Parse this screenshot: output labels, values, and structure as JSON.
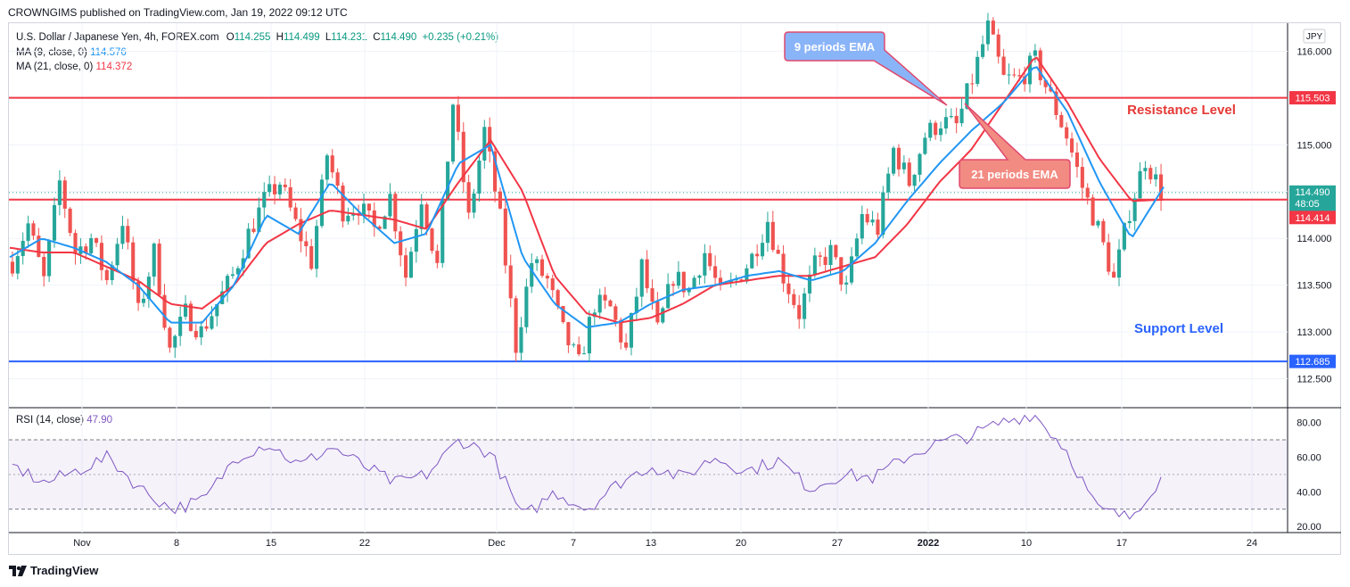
{
  "header": {
    "published_by": "CROWNGIMS published on TradingView.com, Jan 19, 2022 09:12 UTC"
  },
  "legend": {
    "symbol": "U.S. Dollar / Japanese Yen, 4h, FOREX.com",
    "open_label": "O",
    "open": "114.255",
    "high_label": "H",
    "high": "114.499",
    "low_label": "L",
    "low": "114.231",
    "close_label": "C",
    "close": "114.490",
    "change": "+0.235 (+0.21%)",
    "ma9_label": "MA (9, close, 0)",
    "ma9_value": "114.576",
    "ma21_label": "MA (21, close, 0)",
    "ma21_value": "114.372",
    "rsi_label": "RSI (14, close)",
    "rsi_value": "47.90"
  },
  "currency_badge": "JPY",
  "annotations": {
    "ema9": "9 periods EMA",
    "ema21": "21 periods EMA",
    "resistance": "Resistance Level",
    "support": "Support Level"
  },
  "price_tags": {
    "resistance": "115.503",
    "last_price": "114.490",
    "countdown": "48:05",
    "ma_level": "114.414",
    "support": "112.685"
  },
  "footer": {
    "brand": "TradingView"
  },
  "colors": {
    "up": "#26a69a",
    "down": "#ef5350",
    "ma9": "#2196f3",
    "ma21": "#f23645",
    "resistance": "#f23645",
    "support": "#2962ff",
    "rsi": "#7e57c2"
  },
  "chart_data": {
    "type": "candlestick",
    "title": "U.S. Dollar / Japanese Yen, 4h, FOREX.com",
    "price_axis": {
      "ylim": [
        112.2,
        116.3
      ],
      "ticks": [
        "116.000",
        "115.500",
        "115.000",
        "114.500",
        "114.000",
        "113.500",
        "113.000",
        "112.500"
      ]
    },
    "time_axis": {
      "ticks": [
        "Nov",
        "8",
        "15",
        "22",
        "Dec",
        "7",
        "13",
        "20",
        "27",
        "2022",
        "10",
        "17",
        "24"
      ]
    },
    "horizontal_levels": [
      {
        "name": "Resistance Level",
        "value": 115.503
      },
      {
        "name": "",
        "value": 114.414
      },
      {
        "name": "Support Level",
        "value": 112.685
      }
    ],
    "price_path": [
      [
        113.75,
        114.15
      ],
      [
        113.55,
        114.6
      ],
      [
        113.85,
        114.0
      ],
      [
        113.55,
        114.2
      ],
      [
        113.2,
        113.85
      ],
      [
        112.8,
        113.2
      ],
      [
        113.0,
        113.3
      ],
      [
        113.6,
        114.05
      ],
      [
        114.4,
        114.6
      ],
      [
        114.15,
        113.75
      ],
      [
        114.9,
        114.3
      ],
      [
        114.35,
        114.1
      ],
      [
        114.45,
        113.6
      ],
      [
        114.45,
        113.7
      ],
      [
        115.45,
        114.2
      ],
      [
        115.15,
        114.2
      ],
      [
        112.85,
        113.75
      ],
      [
        113.55,
        113.0
      ],
      [
        112.65,
        113.3
      ],
      [
        113.25,
        112.8
      ],
      [
        113.7,
        113.0
      ],
      [
        113.6,
        113.45
      ],
      [
        113.85,
        113.4
      ],
      [
        113.55,
        113.8
      ],
      [
        114.2,
        113.6
      ],
      [
        113.2,
        113.7
      ],
      [
        113.85,
        113.45
      ],
      [
        114.25,
        114.1
      ],
      [
        114.95,
        114.6
      ],
      [
        115.1,
        115.25
      ],
      [
        115.2,
        115.7
      ],
      [
        116.25,
        115.7
      ],
      [
        115.7,
        115.9
      ],
      [
        115.5,
        115.1
      ],
      [
        114.55,
        114.1
      ],
      [
        113.55,
        114.3
      ],
      [
        114.85,
        114.5
      ]
    ],
    "ema9": [
      113.8,
      114.0,
      113.9,
      113.75,
      113.5,
      113.1,
      113.1,
      113.5,
      114.25,
      114.05,
      114.6,
      114.25,
      113.95,
      114.05,
      114.8,
      115.0,
      113.8,
      113.3,
      113.05,
      113.1,
      113.3,
      113.45,
      113.5,
      113.6,
      113.65,
      113.55,
      113.65,
      113.95,
      114.4,
      114.8,
      115.15,
      115.45,
      115.85,
      115.35,
      114.6,
      114.0,
      114.55
    ],
    "ema21": [
      113.9,
      113.85,
      113.85,
      113.7,
      113.55,
      113.3,
      113.25,
      113.5,
      113.95,
      114.15,
      114.3,
      114.25,
      114.2,
      114.1,
      114.6,
      115.05,
      114.5,
      113.6,
      113.2,
      113.1,
      113.15,
      113.3,
      113.5,
      113.55,
      113.6,
      113.6,
      113.7,
      113.8,
      114.15,
      114.6,
      114.95,
      115.45,
      115.95,
      115.45,
      114.85,
      114.4,
      114.414
    ],
    "rsi": {
      "ylim": [
        17,
        88
      ],
      "ticks": [
        "80.00",
        "60.00",
        "40.00",
        "20.00"
      ],
      "bands": [
        30,
        70
      ],
      "last": 47.9,
      "values": [
        55,
        45,
        52,
        60,
        42,
        30,
        35,
        60,
        68,
        55,
        66,
        55,
        45,
        50,
        70,
        62,
        25,
        40,
        30,
        45,
        55,
        48,
        60,
        52,
        58,
        42,
        50,
        48,
        60,
        68,
        72,
        80,
        85,
        65,
        30,
        25,
        47.9
      ]
    }
  }
}
